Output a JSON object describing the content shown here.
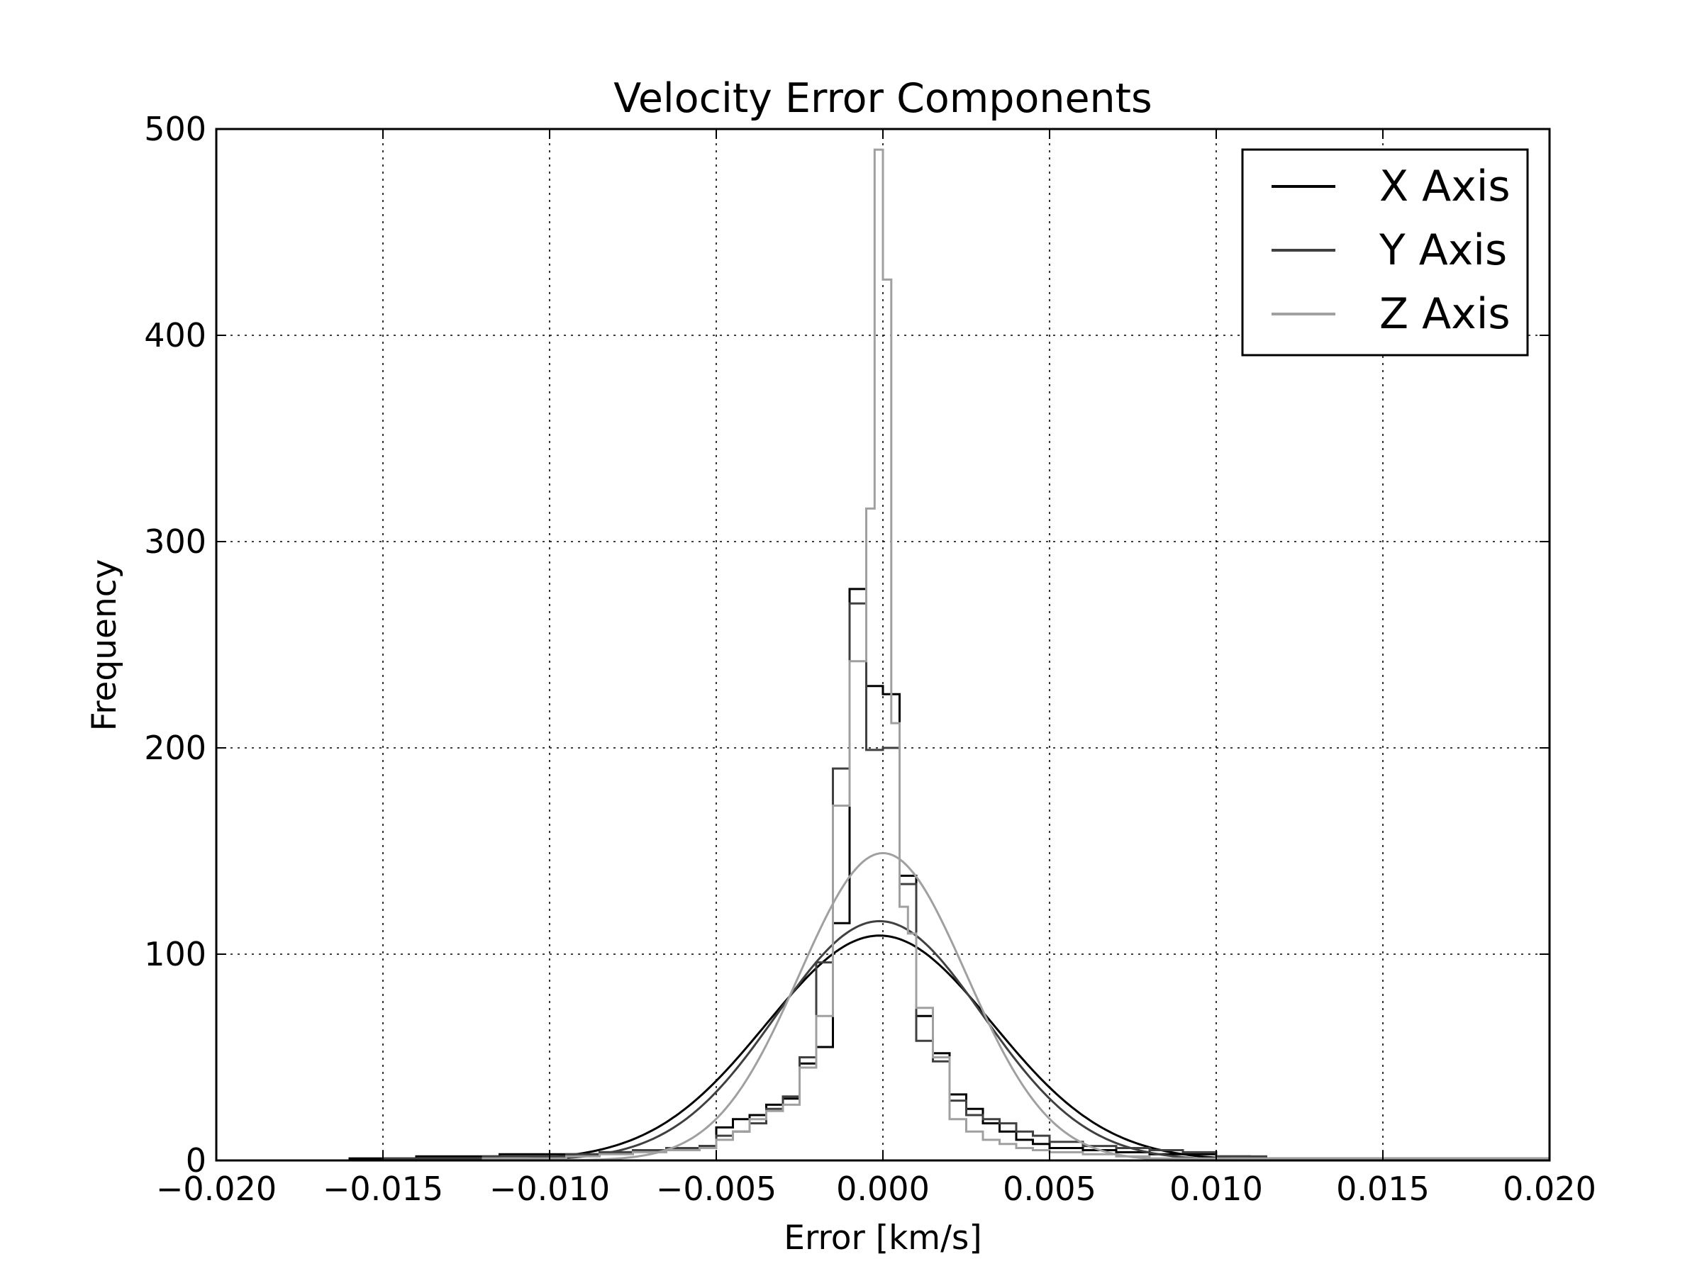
{
  "chart_data": {
    "type": "line",
    "title": "Velocity Error Components",
    "xlabel": "Error [km/s]",
    "ylabel": "Frequency",
    "xlim": [
      -0.02,
      0.02
    ],
    "ylim": [
      0,
      500
    ],
    "x_ticks": [
      -0.02,
      -0.015,
      -0.01,
      -0.005,
      0.0,
      0.005,
      0.01,
      0.015,
      0.02
    ],
    "x_tick_labels": [
      "−0.020",
      "−0.015",
      "−0.010",
      "−0.005",
      "0.000",
      "0.005",
      "0.010",
      "0.015",
      "0.020"
    ],
    "y_ticks": [
      0,
      100,
      200,
      300,
      400,
      500
    ],
    "y_tick_labels": [
      "0",
      "100",
      "200",
      "300",
      "400",
      "500"
    ],
    "grid": true,
    "legend_position": "top-right",
    "series": [
      {
        "name": "X Axis",
        "color": "#000000",
        "histogram": {
          "x": [
            -0.02,
            -0.016,
            -0.014,
            -0.0115,
            -0.0095,
            -0.0085,
            -0.0075,
            -0.0065,
            -0.0055,
            -0.005,
            -0.0045,
            -0.004,
            -0.0035,
            -0.003,
            -0.0025,
            -0.002,
            -0.0015,
            -0.001,
            -0.0005,
            0.0,
            0.0005,
            0.001,
            0.0015,
            0.002,
            0.0025,
            0.003,
            0.0035,
            0.004,
            0.0045,
            0.005,
            0.006,
            0.007,
            0.008,
            0.009,
            0.01,
            0.011,
            0.013,
            0.02
          ],
          "y": [
            0,
            1,
            2,
            3,
            3,
            4,
            5,
            6,
            7,
            16,
            20,
            22,
            27,
            30,
            47,
            55,
            115,
            277,
            230,
            226,
            138,
            70,
            52,
            32,
            25,
            18,
            14,
            10,
            8,
            6,
            5,
            4,
            3,
            3,
            2,
            1,
            1,
            1
          ]
        },
        "fit": {
          "mean": -0.0001,
          "std": 0.0034,
          "peak": 109
        }
      },
      {
        "name": "Y Axis",
        "color": "#404040",
        "histogram": {
          "x": [
            -0.02,
            -0.015,
            -0.012,
            -0.0095,
            -0.0085,
            -0.0075,
            -0.0065,
            -0.0055,
            -0.005,
            -0.0045,
            -0.004,
            -0.0035,
            -0.003,
            -0.0025,
            -0.002,
            -0.0015,
            -0.001,
            -0.0005,
            0.0,
            0.0005,
            0.001,
            0.0015,
            0.002,
            0.0025,
            0.003,
            0.0035,
            0.004,
            0.0045,
            0.005,
            0.006,
            0.007,
            0.008,
            0.009,
            0.01,
            0.0115,
            0.014,
            0.02
          ],
          "y": [
            0,
            1,
            2,
            3,
            4,
            5,
            6,
            7,
            12,
            14,
            18,
            25,
            31,
            50,
            96,
            190,
            270,
            199,
            200,
            134,
            58,
            48,
            29,
            22,
            20,
            18,
            14,
            12,
            9,
            7,
            6,
            5,
            4,
            2,
            1,
            1,
            1
          ]
        },
        "fit": {
          "mean": -0.0001,
          "std": 0.0031,
          "peak": 116
        }
      },
      {
        "name": "Z Axis",
        "color": "#a0a0a0",
        "histogram": {
          "x": [
            -0.02,
            -0.012,
            -0.0095,
            -0.0085,
            -0.0075,
            -0.0065,
            -0.0055,
            -0.005,
            -0.0045,
            -0.004,
            -0.0035,
            -0.003,
            -0.0025,
            -0.002,
            -0.0015,
            -0.001,
            -0.0005,
            -0.00025,
            0.0,
            0.00025,
            0.0005,
            0.00075,
            0.001,
            0.0015,
            0.002,
            0.0025,
            0.003,
            0.0035,
            0.004,
            0.0045,
            0.005,
            0.006,
            0.007,
            0.008,
            0.01,
            0.02
          ],
          "y": [
            0,
            1,
            2,
            3,
            4,
            5,
            6,
            10,
            14,
            20,
            24,
            27,
            45,
            70,
            172,
            242,
            316,
            490,
            427,
            212,
            123,
            110,
            74,
            50,
            20,
            14,
            10,
            8,
            6,
            5,
            4,
            3,
            2,
            1,
            1,
            1
          ]
        },
        "fit": {
          "mean": 0.0,
          "std": 0.0025,
          "peak": 149
        }
      }
    ]
  }
}
